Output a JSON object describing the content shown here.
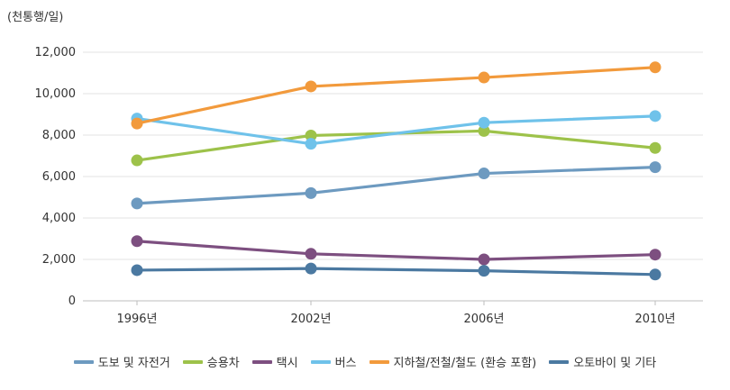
{
  "chart_data": {
    "type": "line",
    "unit_label": "(천통행/일)",
    "categories": [
      "1996년",
      "2002년",
      "2006년",
      "2010년"
    ],
    "ylim": [
      0,
      12000
    ],
    "yticks": [
      "0",
      "2,000",
      "4,000",
      "6,000",
      "8,000",
      "10,000",
      "12,000"
    ],
    "ytick_values": [
      0,
      2000,
      4000,
      6000,
      8000,
      10000,
      12000
    ],
    "grid": true,
    "legend_position": "bottom",
    "series": [
      {
        "name": "도보 및 자전거",
        "color": "#6d9ac0",
        "values": [
          4700,
          5200,
          6150,
          6450
        ]
      },
      {
        "name": "승용차",
        "color": "#9dc24a",
        "values": [
          6780,
          7980,
          8200,
          7380
        ]
      },
      {
        "name": "택시",
        "color": "#7d4f80",
        "values": [
          2880,
          2270,
          2000,
          2230
        ]
      },
      {
        "name": "버스",
        "color": "#6fc2ea",
        "values": [
          8800,
          7580,
          8600,
          8920
        ]
      },
      {
        "name": "지하철/전철/철도 (환승 포함)",
        "color": "#f29a3c",
        "values": [
          8560,
          10350,
          10780,
          11270
        ]
      },
      {
        "name": "오토바이 및 기타",
        "color": "#4b79a1",
        "values": [
          1480,
          1560,
          1450,
          1270
        ]
      }
    ]
  }
}
